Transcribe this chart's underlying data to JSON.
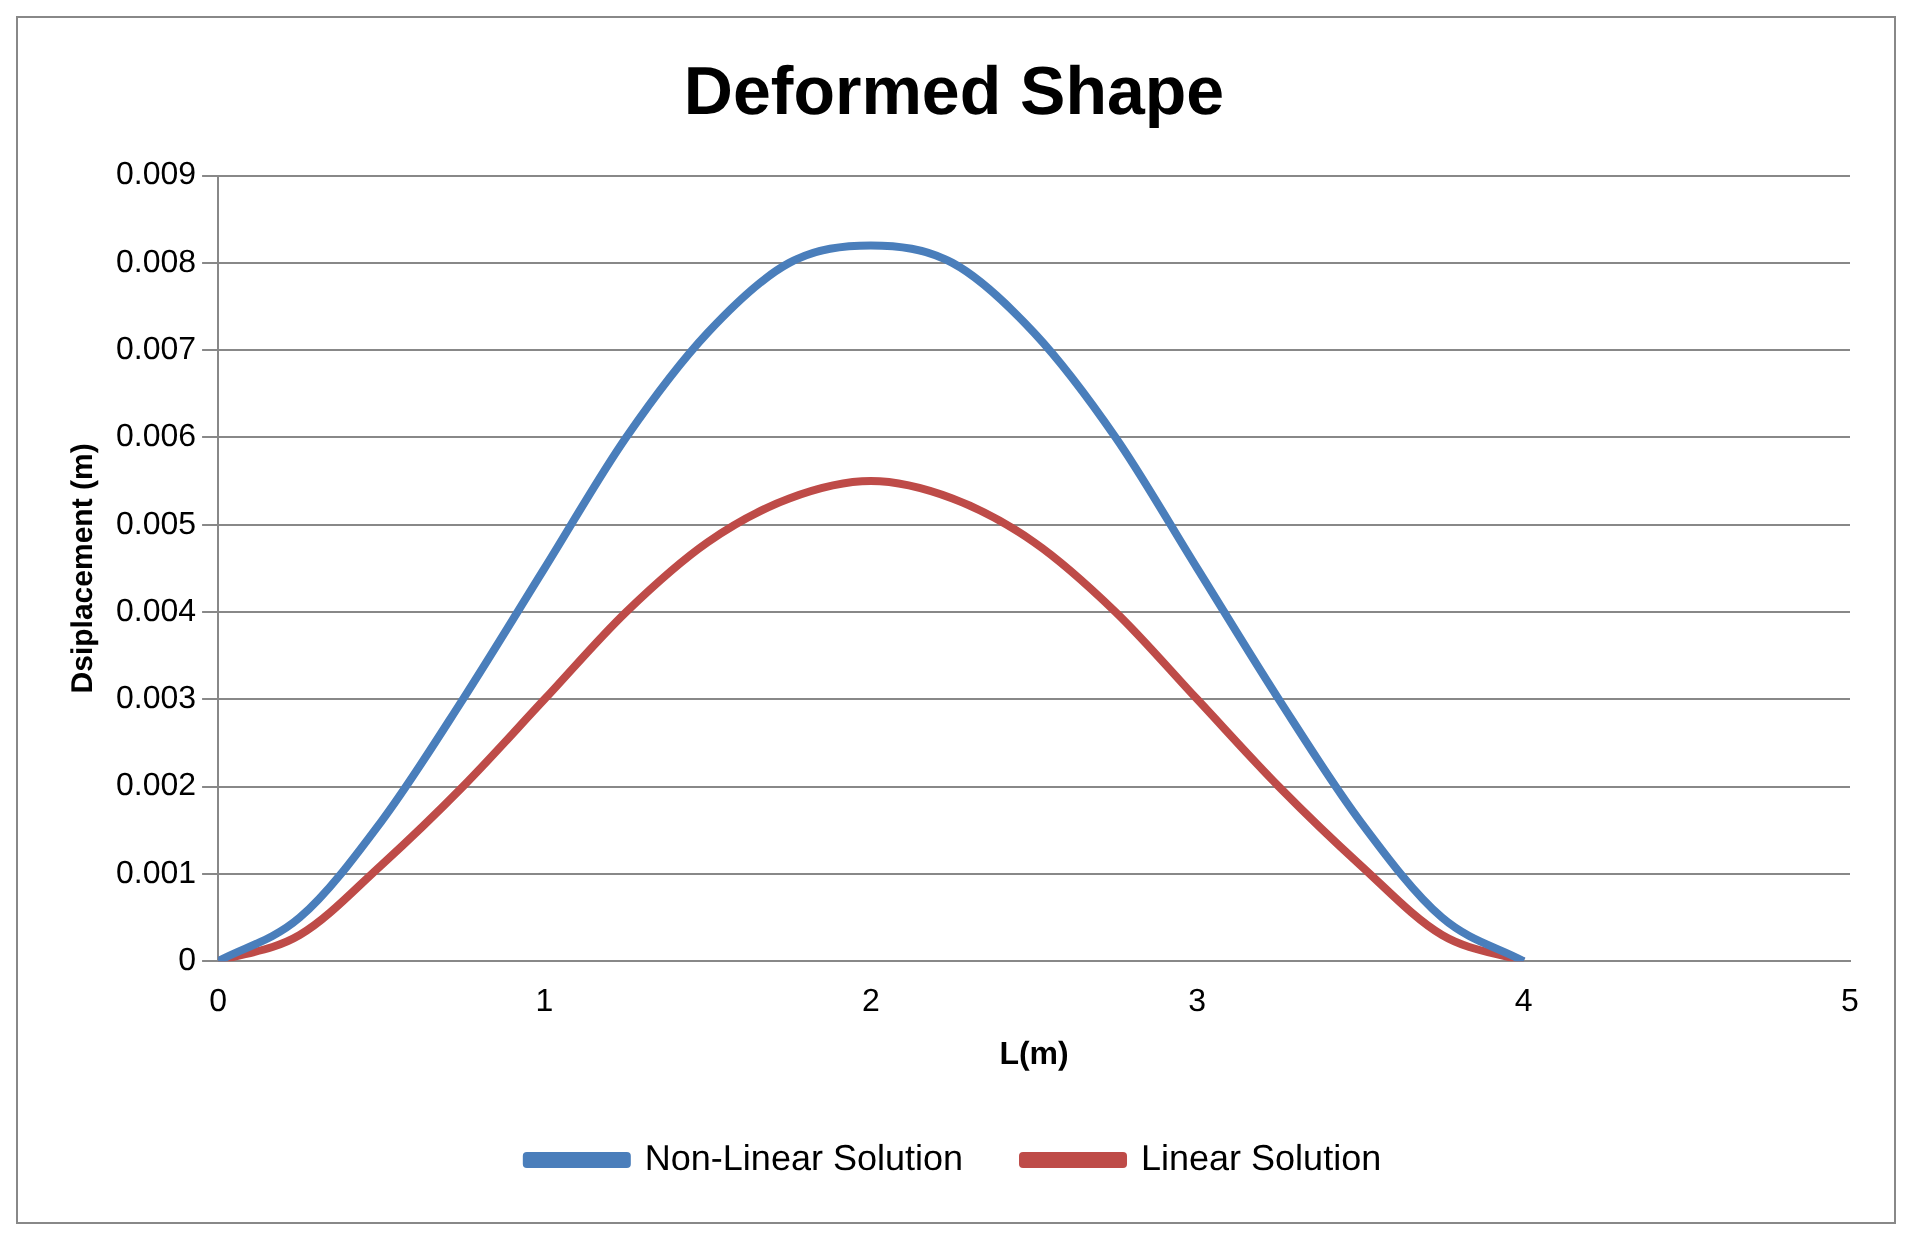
{
  "chart_data": {
    "type": "line",
    "title": "Deformed Shape",
    "xlabel": "L(m)",
    "ylabel": "Dsiplacement (m)",
    "x": [
      0,
      0.25,
      0.5,
      0.75,
      1,
      1.25,
      1.5,
      1.75,
      2,
      2.25,
      2.5,
      2.75,
      3,
      3.25,
      3.5,
      3.75,
      4
    ],
    "series": [
      {
        "name": "Non-Linear Solution",
        "color": "#4a7ebb",
        "values": [
          0,
          0.0005,
          0.0016,
          0.003,
          0.0045,
          0.006,
          0.0072,
          0.008,
          0.0082,
          0.008,
          0.0072,
          0.006,
          0.0045,
          0.003,
          0.0016,
          0.0005,
          0
        ]
      },
      {
        "name": "Linear Solution",
        "color": "#be4b48",
        "values": [
          0,
          0.0003,
          0.0011,
          0.002,
          0.003,
          0.004,
          0.0048,
          0.0053,
          0.0055,
          0.0053,
          0.0048,
          0.004,
          0.003,
          0.002,
          0.0011,
          0.0003,
          0
        ]
      }
    ],
    "xlim": [
      0,
      5
    ],
    "xticks": [
      0,
      1,
      2,
      3,
      4,
      5
    ],
    "ylim": [
      0,
      0.009
    ],
    "yticks": [
      0,
      0.001,
      0.002,
      0.003,
      0.004,
      0.005,
      0.006,
      0.007,
      0.008,
      0.009
    ],
    "grid": "y",
    "legend": "bottom",
    "marker": "none",
    "line_style": "solid"
  }
}
